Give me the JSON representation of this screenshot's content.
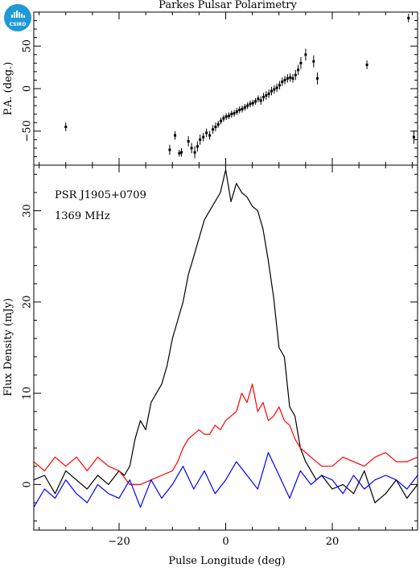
{
  "logo": {
    "text": "CSIRO",
    "icon": "csiro-logo-icon",
    "color": "#1e9ad6"
  },
  "chart_data": [
    {
      "type": "scatter",
      "panel": "top",
      "title": "Parkes Pulsar Polarimetry",
      "ylabel": "P.A. (deg.)",
      "xlim": [
        -36,
        36
      ],
      "ylim": [
        -90,
        90
      ],
      "yticks": [
        -50,
        0,
        50
      ],
      "ytick_labels": [
        "−50",
        "0",
        "50"
      ],
      "error_bars": true,
      "series": [
        {
          "points": [
            {
              "x": -30,
              "y": -45,
              "err": 5
            },
            {
              "x": -10.5,
              "y": -72,
              "err": 6
            },
            {
              "x": -9.5,
              "y": -55,
              "err": 5
            },
            {
              "x": -8.7,
              "y": -76,
              "err": 4
            },
            {
              "x": -8.3,
              "y": -75,
              "err": 5
            },
            {
              "x": -7,
              "y": -62,
              "err": 6
            },
            {
              "x": -6.4,
              "y": -70,
              "err": 6
            },
            {
              "x": -5.8,
              "y": -75,
              "err": 7
            },
            {
              "x": -5.3,
              "y": -68,
              "err": 6
            },
            {
              "x": -4.8,
              "y": -60,
              "err": 6
            },
            {
              "x": -4.2,
              "y": -57,
              "err": 5
            },
            {
              "x": -3.6,
              "y": -52,
              "err": 5
            },
            {
              "x": -3.0,
              "y": -55,
              "err": 5
            },
            {
              "x": -2.4,
              "y": -48,
              "err": 5
            },
            {
              "x": -1.9,
              "y": -45,
              "err": 5
            },
            {
              "x": -1.4,
              "y": -42,
              "err": 4
            },
            {
              "x": -0.9,
              "y": -38,
              "err": 4
            },
            {
              "x": -0.4,
              "y": -35,
              "err": 4
            },
            {
              "x": 0.1,
              "y": -33,
              "err": 4
            },
            {
              "x": 0.6,
              "y": -32,
              "err": 4
            },
            {
              "x": 1.1,
              "y": -30,
              "err": 4
            },
            {
              "x": 1.6,
              "y": -29,
              "err": 4
            },
            {
              "x": 2.1,
              "y": -27,
              "err": 4
            },
            {
              "x": 2.6,
              "y": -25,
              "err": 4
            },
            {
              "x": 3.1,
              "y": -24,
              "err": 4
            },
            {
              "x": 3.6,
              "y": -22,
              "err": 4
            },
            {
              "x": 4.1,
              "y": -20,
              "err": 4
            },
            {
              "x": 4.6,
              "y": -18,
              "err": 4
            },
            {
              "x": 5.1,
              "y": -17,
              "err": 4
            },
            {
              "x": 5.6,
              "y": -15,
              "err": 4
            },
            {
              "x": 6.1,
              "y": -12,
              "err": 4
            },
            {
              "x": 6.6,
              "y": -14,
              "err": 5
            },
            {
              "x": 7.1,
              "y": -10,
              "err": 5
            },
            {
              "x": 7.6,
              "y": -8,
              "err": 5
            },
            {
              "x": 8.1,
              "y": -6,
              "err": 5
            },
            {
              "x": 8.6,
              "y": -3,
              "err": 5
            },
            {
              "x": 9.1,
              "y": -1,
              "err": 5
            },
            {
              "x": 9.6,
              "y": 1,
              "err": 5
            },
            {
              "x": 10.1,
              "y": 4,
              "err": 5
            },
            {
              "x": 10.6,
              "y": 8,
              "err": 5
            },
            {
              "x": 11.1,
              "y": 10,
              "err": 5
            },
            {
              "x": 11.6,
              "y": 12,
              "err": 5
            },
            {
              "x": 12.1,
              "y": 13,
              "err": 5
            },
            {
              "x": 12.6,
              "y": 12,
              "err": 5
            },
            {
              "x": 13.1,
              "y": 16,
              "err": 6
            },
            {
              "x": 13.6,
              "y": 22,
              "err": 6
            },
            {
              "x": 14.1,
              "y": 30,
              "err": 7
            },
            {
              "x": 15.0,
              "y": 40,
              "err": 7
            },
            {
              "x": 16.5,
              "y": 32,
              "err": 7
            },
            {
              "x": 17.2,
              "y": 12,
              "err": 7
            },
            {
              "x": 26.5,
              "y": 28,
              "err": 5
            },
            {
              "x": 34.3,
              "y": 83,
              "err": 5
            },
            {
              "x": 35.3,
              "y": -57,
              "err": 8
            }
          ]
        }
      ]
    },
    {
      "type": "line",
      "panel": "bottom",
      "xlabel": "Pulse Longitude (deg)",
      "ylabel": "Flux Density (mJy)",
      "xlim": [
        -36,
        36
      ],
      "ylim": [
        -5,
        35
      ],
      "xticks": [
        -20,
        0,
        20
      ],
      "xtick_labels": [
        "−20",
        "0",
        "20"
      ],
      "yticks": [
        0,
        10,
        20,
        30
      ],
      "ytick_labels": [
        "0",
        "10",
        "20",
        "30"
      ],
      "annotations": [
        "PSR J1905+0709",
        "1369 MHz"
      ],
      "series": [
        {
          "color": "#000000",
          "x": [
            -36,
            -34,
            -32,
            -30,
            -28,
            -26,
            -24,
            -22,
            -20,
            -19,
            -18,
            -17,
            -16,
            -15,
            -14,
            -13,
            -12,
            -11,
            -10,
            -9,
            -8,
            -7,
            -6,
            -5,
            -4,
            -3,
            -2,
            -1,
            0,
            1,
            2,
            3,
            4,
            5,
            6,
            7,
            8,
            9,
            10,
            11,
            12,
            13,
            14,
            15,
            16,
            17,
            18,
            20,
            22,
            24,
            26,
            28,
            30,
            32,
            34,
            36
          ],
          "y": [
            0.5,
            1.0,
            -1.0,
            1.5,
            0.5,
            -0.5,
            1.0,
            0.0,
            1.5,
            1.0,
            2.0,
            5.0,
            7.0,
            6.0,
            9.0,
            10.0,
            11.0,
            13.0,
            16.0,
            18.0,
            20.0,
            23.0,
            25.0,
            27.0,
            29.0,
            30.0,
            31.0,
            32.0,
            34.5,
            31.0,
            33.0,
            32.0,
            31.5,
            30.5,
            30.0,
            28.0,
            24.5,
            20.5,
            15.0,
            14.0,
            8.5,
            7.5,
            4.0,
            2.5,
            1.5,
            0.5,
            1.0,
            -0.5,
            0.0,
            -1.0,
            1.5,
            -2.0,
            -1.0,
            0.5,
            -1.5,
            0.0
          ]
        },
        {
          "color": "#ff0000",
          "x": [
            -36,
            -34,
            -32,
            -30,
            -28,
            -26,
            -24,
            -22,
            -20,
            -18,
            -16,
            -14,
            -12,
            -10,
            -9,
            -8,
            -7,
            -6,
            -5,
            -4,
            -3,
            -2,
            -1,
            0,
            1,
            2,
            3,
            4,
            5,
            6,
            7,
            8,
            9,
            10,
            11,
            12,
            13,
            14,
            16,
            18,
            20,
            22,
            24,
            26,
            28,
            30,
            32,
            34,
            36
          ],
          "y": [
            2.5,
            1.5,
            3.0,
            2.0,
            3.0,
            1.5,
            3.0,
            2.0,
            1.5,
            0.0,
            0.0,
            0.5,
            1.0,
            1.5,
            2.5,
            4.0,
            5.0,
            5.5,
            6.0,
            5.5,
            5.5,
            6.5,
            6.0,
            7.0,
            7.5,
            8.0,
            10.0,
            9.0,
            11.0,
            8.0,
            9.0,
            7.0,
            7.5,
            8.5,
            7.0,
            6.5,
            5.0,
            4.0,
            3.0,
            2.0,
            2.0,
            3.0,
            2.5,
            2.0,
            3.0,
            3.5,
            2.5,
            2.5,
            3.0
          ]
        },
        {
          "color": "#0000ff",
          "x": [
            -36,
            -34,
            -32,
            -30,
            -28,
            -26,
            -24,
            -22,
            -20,
            -18,
            -16,
            -14,
            -12,
            -10,
            -8,
            -6,
            -4,
            -2,
            0,
            2,
            4,
            6,
            8,
            10,
            12,
            14,
            16,
            18,
            20,
            22,
            24,
            26,
            28,
            30,
            32,
            34,
            36
          ],
          "y": [
            -2.5,
            -0.5,
            -1.5,
            0.5,
            -1.0,
            -2.0,
            0.0,
            -1.0,
            -1.5,
            0.5,
            -2.5,
            0.5,
            -1.5,
            0.0,
            2.0,
            -0.5,
            1.5,
            -1.0,
            0.5,
            2.5,
            1.0,
            -0.5,
            3.5,
            1.0,
            -1.5,
            1.5,
            0.0,
            1.0,
            0.5,
            -1.0,
            1.0,
            -0.5,
            0.5,
            1.0,
            0.5,
            -0.5,
            1.0
          ]
        }
      ]
    }
  ]
}
